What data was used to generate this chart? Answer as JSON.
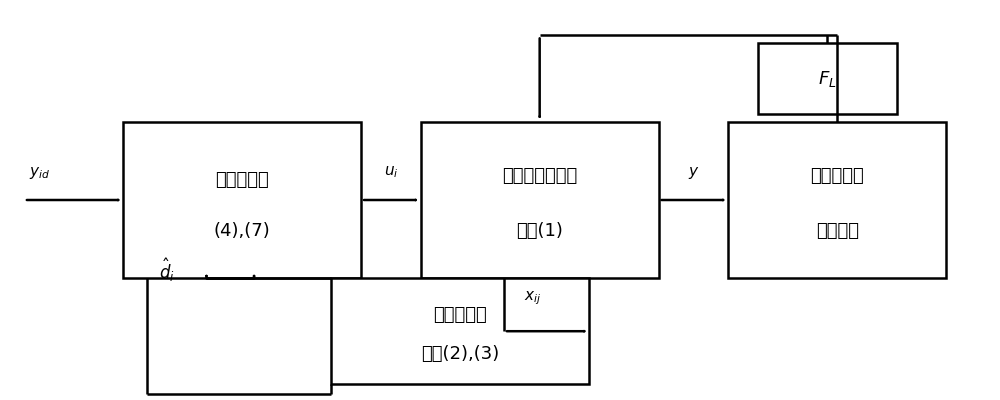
{
  "bg_color": "#ffffff",
  "lw": 1.8,
  "fs_cn": 13,
  "fs_math": 11,
  "boxes": {
    "back": [
      0.12,
      0.3,
      0.24,
      0.4
    ],
    "act": [
      0.42,
      0.3,
      0.24,
      0.4
    ],
    "robot": [
      0.73,
      0.3,
      0.22,
      0.4
    ],
    "obs": [
      0.33,
      0.03,
      0.26,
      0.27
    ],
    "fl": [
      0.76,
      0.72,
      0.14,
      0.18
    ]
  },
  "labels": {
    "back_line1": "反步控制律",
    "back_line2": "(4),(7)",
    "act_line1": "级联电液伺服执",
    "act_line2": "行器(1)",
    "robot_line1": "多自由度运",
    "robot_line2": "动机械蟁",
    "obs_line1": "耦合干扰观",
    "obs_line2": "测器(2),(3)",
    "fl": "$F_L$",
    "yid": "$y_{id}$",
    "ui": "$u_i$",
    "y": "$y$",
    "xij": "$x_{ij}$",
    "dhat": "$\\hat{d}_i$"
  }
}
